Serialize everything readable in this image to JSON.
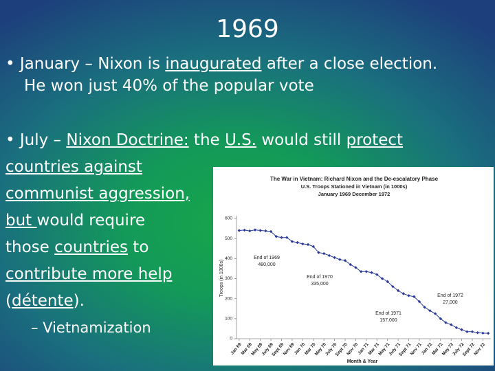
{
  "slide": {
    "title": "1969",
    "lines": [
      {
        "segments": [
          {
            "text": "• January – Nixon is "
          },
          {
            "text": "inaugurated",
            "underline": true
          },
          {
            "text": " after a close election."
          }
        ]
      },
      {
        "segments": [
          {
            "text": "He won just 40% of the popular vote"
          }
        ]
      },
      {
        "segments": [
          {
            "text": "• July – "
          },
          {
            "text": "Nixon Doctrine:",
            "underline": true
          },
          {
            "text": " the "
          },
          {
            "text": "U.S.",
            "underline": true
          },
          {
            "text": " would still "
          },
          {
            "text": "protect",
            "underline": true
          }
        ]
      },
      {
        "segments": [
          {
            "text": "countries against",
            "underline": true
          }
        ]
      },
      {
        "segments": [
          {
            "text": "communist aggression,",
            "underline": true
          }
        ]
      },
      {
        "segments": [
          {
            "text": "but ",
            "underline": true
          },
          {
            "text": "would require"
          }
        ]
      },
      {
        "segments": [
          {
            "text": "those "
          },
          {
            "text": "countries",
            "underline": true
          },
          {
            "text": " to"
          }
        ]
      },
      {
        "segments": [
          {
            "text": "contribute more help",
            "underline": true
          }
        ]
      },
      {
        "segments": [
          {
            "text": "("
          },
          {
            "text": "détente",
            "underline": true
          },
          {
            "text": ")."
          }
        ]
      },
      {
        "segments": [
          {
            "text": "– Vietnamization"
          }
        ]
      }
    ]
  },
  "chart_data": {
    "type": "line",
    "title": [
      "The War in Vietnam: Richard Nixon and the De-escalatory Phase",
      "U.S. Troops Stationed in Vietnam (in 1000s)",
      "January 1969 December 1972"
    ],
    "y_label": "Troops (in 1000s)",
    "x_label": "Month & Year",
    "categories": [
      "Jan 69",
      null,
      "Mar 69",
      null,
      "May 69",
      null,
      "July 69",
      null,
      "Sept 69",
      null,
      "Nov 69",
      null,
      "Jan 70",
      null,
      "Mar 70",
      null,
      "May 70",
      null,
      "July 70",
      null,
      "Sept 70",
      null,
      "Nov 70",
      null,
      "Jan 71",
      null,
      "Mar 71",
      null,
      "May 71",
      null,
      "July 71",
      null,
      "Sept 71",
      null,
      "Nov 71",
      null,
      "Jan 72",
      null,
      "Mar 72",
      null,
      "May 72",
      null,
      "July 72",
      null,
      "Sept 72",
      null,
      "Nov 72",
      null
    ],
    "series": [
      {
        "name": "Troops",
        "color": "#2b3a9a",
        "values": [
          540,
          542,
          538,
          543,
          540,
          538,
          535,
          510,
          505,
          505,
          485,
          480,
          473,
          470,
          460,
          430,
          425,
          415,
          405,
          395,
          390,
          370,
          355,
          335,
          335,
          330,
          320,
          300,
          285,
          260,
          240,
          225,
          215,
          210,
          185,
          157,
          140,
          125,
          100,
          80,
          70,
          55,
          45,
          35,
          35,
          30,
          28,
          27
        ]
      }
    ],
    "ylim": [
      0,
      600
    ],
    "yticks": [
      0,
      100,
      200,
      300,
      400,
      500,
      600
    ],
    "annotations": [
      {
        "lines": [
          "End of 1969",
          "480,000"
        ],
        "index": 11
      },
      {
        "lines": [
          "End of 1970",
          "335,000"
        ],
        "index": 23
      },
      {
        "lines": [
          "End of 1971",
          "157,000"
        ],
        "index": 35
      },
      {
        "lines": [
          "End of 1972",
          "27,000"
        ],
        "index": 47
      }
    ]
  }
}
